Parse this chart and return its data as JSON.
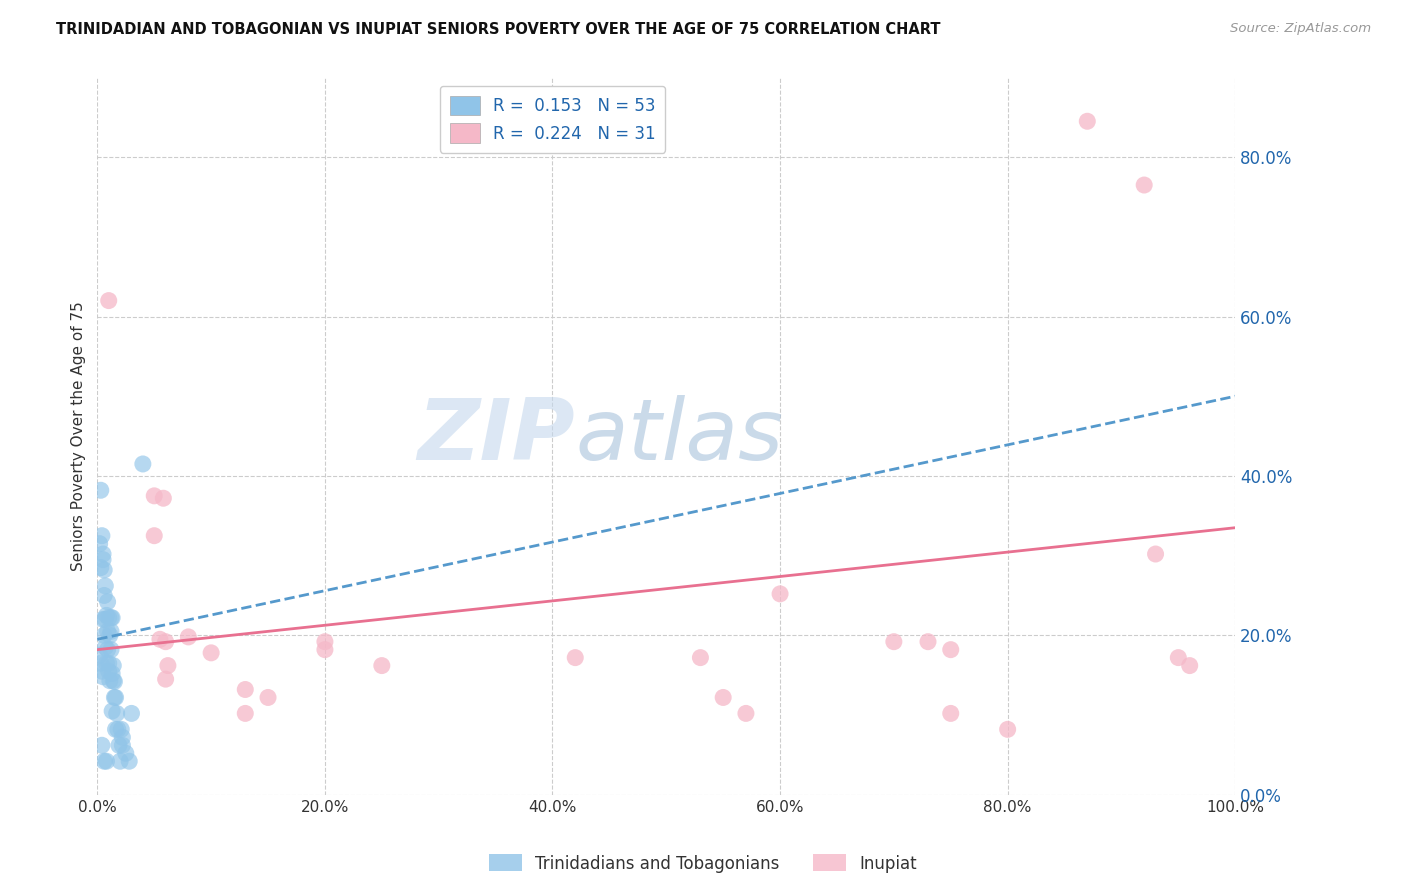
{
  "title": "TRINIDADIAN AND TOBAGONIAN VS INUPIAT SENIORS POVERTY OVER THE AGE OF 75 CORRELATION CHART",
  "source": "Source: ZipAtlas.com",
  "ylabel": "Seniors Poverty Over the Age of 75",
  "xlabel": "",
  "watermark_zip": "ZIP",
  "watermark_atlas": "atlas",
  "legend_blue_r": "0.153",
  "legend_blue_n": "53",
  "legend_pink_r": "0.224",
  "legend_pink_n": "31",
  "legend_label_blue": "Trinidadians and Tobagonians",
  "legend_label_pink": "Inupiat",
  "blue_color": "#90c4e8",
  "pink_color": "#f5b8c8",
  "blue_line_color": "#5599cc",
  "pink_line_color": "#e87090",
  "background_color": "#ffffff",
  "grid_color": "#cccccc",
  "xlim": [
    0.0,
    1.0
  ],
  "ylim": [
    0.0,
    0.9
  ],
  "blue_dots": [
    [
      0.002,
      0.315
    ],
    [
      0.003,
      0.285
    ],
    [
      0.004,
      0.325
    ],
    [
      0.005,
      0.295
    ],
    [
      0.005,
      0.22
    ],
    [
      0.006,
      0.25
    ],
    [
      0.006,
      0.2
    ],
    [
      0.007,
      0.185
    ],
    [
      0.007,
      0.22
    ],
    [
      0.008,
      0.165
    ],
    [
      0.008,
      0.225
    ],
    [
      0.009,
      0.205
    ],
    [
      0.009,
      0.182
    ],
    [
      0.01,
      0.155
    ],
    [
      0.01,
      0.165
    ],
    [
      0.011,
      0.2
    ],
    [
      0.011,
      0.143
    ],
    [
      0.012,
      0.182
    ],
    [
      0.012,
      0.205
    ],
    [
      0.013,
      0.152
    ],
    [
      0.013,
      0.105
    ],
    [
      0.014,
      0.143
    ],
    [
      0.014,
      0.162
    ],
    [
      0.015,
      0.122
    ],
    [
      0.015,
      0.142
    ],
    [
      0.016,
      0.082
    ],
    [
      0.016,
      0.122
    ],
    [
      0.017,
      0.102
    ],
    [
      0.018,
      0.082
    ],
    [
      0.019,
      0.062
    ],
    [
      0.02,
      0.042
    ],
    [
      0.021,
      0.082
    ],
    [
      0.022,
      0.062
    ],
    [
      0.025,
      0.052
    ],
    [
      0.028,
      0.042
    ],
    [
      0.03,
      0.102
    ],
    [
      0.003,
      0.382
    ],
    [
      0.005,
      0.302
    ],
    [
      0.006,
      0.282
    ],
    [
      0.007,
      0.262
    ],
    [
      0.009,
      0.242
    ],
    [
      0.01,
      0.222
    ],
    [
      0.012,
      0.222
    ],
    [
      0.013,
      0.222
    ],
    [
      0.002,
      0.175
    ],
    [
      0.003,
      0.165
    ],
    [
      0.004,
      0.155
    ],
    [
      0.005,
      0.148
    ],
    [
      0.004,
      0.062
    ],
    [
      0.006,
      0.042
    ],
    [
      0.008,
      0.042
    ],
    [
      0.022,
      0.072
    ],
    [
      0.04,
      0.415
    ]
  ],
  "pink_dots": [
    [
      0.01,
      0.62
    ],
    [
      0.05,
      0.375
    ],
    [
      0.05,
      0.325
    ],
    [
      0.055,
      0.195
    ],
    [
      0.06,
      0.192
    ],
    [
      0.062,
      0.162
    ],
    [
      0.06,
      0.145
    ],
    [
      0.058,
      0.372
    ],
    [
      0.08,
      0.198
    ],
    [
      0.1,
      0.178
    ],
    [
      0.13,
      0.132
    ],
    [
      0.13,
      0.102
    ],
    [
      0.15,
      0.122
    ],
    [
      0.2,
      0.192
    ],
    [
      0.2,
      0.182
    ],
    [
      0.25,
      0.162
    ],
    [
      0.42,
      0.172
    ],
    [
      0.53,
      0.172
    ],
    [
      0.55,
      0.122
    ],
    [
      0.57,
      0.102
    ],
    [
      0.6,
      0.252
    ],
    [
      0.7,
      0.192
    ],
    [
      0.73,
      0.192
    ],
    [
      0.75,
      0.182
    ],
    [
      0.75,
      0.102
    ],
    [
      0.8,
      0.082
    ],
    [
      0.87,
      0.845
    ],
    [
      0.92,
      0.765
    ],
    [
      0.93,
      0.302
    ],
    [
      0.95,
      0.172
    ],
    [
      0.96,
      0.162
    ]
  ],
  "blue_trendline_x": [
    0.0,
    1.0
  ],
  "blue_trendline_y": [
    0.195,
    0.5
  ],
  "pink_trendline_x": [
    0.0,
    1.0
  ],
  "pink_trendline_y": [
    0.182,
    0.335
  ],
  "yticks": [
    0.0,
    0.2,
    0.4,
    0.6,
    0.8
  ],
  "ytick_labels": [
    "0.0%",
    "20.0%",
    "40.0%",
    "60.0%",
    "80.0%"
  ],
  "xticks": [
    0.0,
    0.2,
    0.4,
    0.6,
    0.8,
    1.0
  ],
  "xtick_labels": [
    "0.0%",
    "20.0%",
    "40.0%",
    "60.0%",
    "80.0%",
    "100.0%"
  ]
}
